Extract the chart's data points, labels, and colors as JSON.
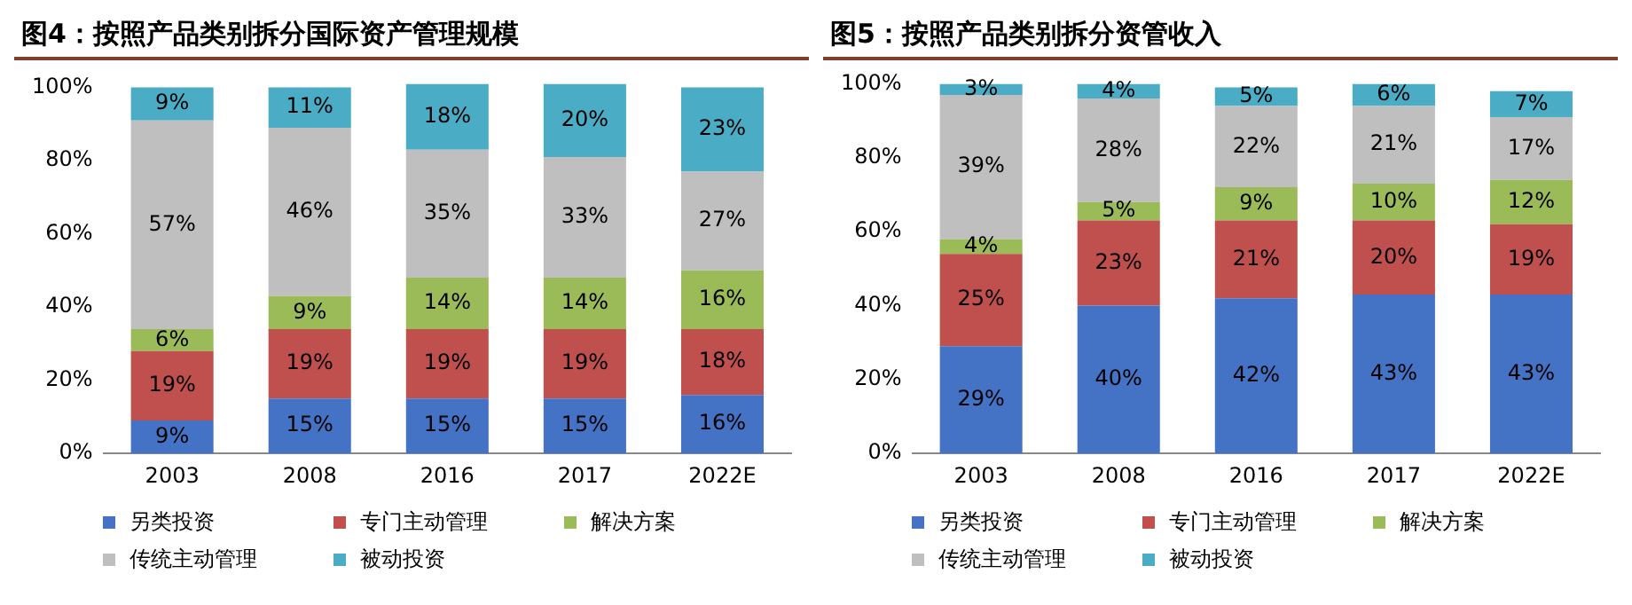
{
  "chart_data": [
    {
      "type": "bar",
      "title": "图4：按照产品类别拆分国际资产管理规模",
      "categories": [
        "2003",
        "2008",
        "2016",
        "2017",
        "2022E"
      ],
      "stacked": true,
      "legend": "bottom",
      "grid": false,
      "ylim": [
        0,
        101
      ],
      "yticks": [
        {
          "value": 0,
          "label": "0%"
        },
        {
          "value": 20,
          "label": "20%"
        },
        {
          "value": 40,
          "label": "40%"
        },
        {
          "value": 60,
          "label": "60%"
        },
        {
          "value": 80,
          "label": "80%"
        },
        {
          "value": 100,
          "label": "100%"
        }
      ],
      "series": [
        {
          "name": "另类投资",
          "color": "#4472c4",
          "values": [
            9,
            15,
            15,
            15,
            16
          ],
          "value_labels": [
            "9%",
            "15%",
            "15%",
            "15%",
            "16%"
          ]
        },
        {
          "name": "专门主动管理",
          "color": "#c0504d",
          "values": [
            19,
            19,
            19,
            19,
            18
          ],
          "value_labels": [
            "19%",
            "19%",
            "19%",
            "19%",
            "18%"
          ]
        },
        {
          "name": "解决方案",
          "color": "#9bbb59",
          "values": [
            6,
            9,
            14,
            14,
            16
          ],
          "value_labels": [
            "6%",
            "9%",
            "14%",
            "14%",
            "16%"
          ]
        },
        {
          "name": "传统主动管理",
          "color": "#bfbfbf",
          "values": [
            57,
            46,
            35,
            33,
            27
          ],
          "value_labels": [
            "57%",
            "46%",
            "35%",
            "33%",
            "27%"
          ]
        },
        {
          "name": "被动投资",
          "color": "#4bacc6",
          "values": [
            9,
            11,
            18,
            20,
            23
          ],
          "value_labels": [
            "9%",
            "11%",
            "18%",
            "20%",
            "23%"
          ]
        }
      ]
    },
    {
      "type": "bar",
      "title": "图5：按照产品类别拆分资管收入",
      "categories": [
        "2003",
        "2008",
        "2016",
        "2017",
        "2022E"
      ],
      "stacked": true,
      "legend": "bottom",
      "grid": false,
      "ylim": [
        0,
        100
      ],
      "yticks": [
        {
          "value": 0,
          "label": "0%"
        },
        {
          "value": 20,
          "label": "20%"
        },
        {
          "value": 40,
          "label": "40%"
        },
        {
          "value": 60,
          "label": "60%"
        },
        {
          "value": 80,
          "label": "80%"
        },
        {
          "value": 100,
          "label": "100%"
        }
      ],
      "series": [
        {
          "name": "另类投资",
          "color": "#4472c4",
          "values": [
            29,
            40,
            42,
            43,
            43
          ],
          "value_labels": [
            "29%",
            "40%",
            "42%",
            "43%",
            "43%"
          ]
        },
        {
          "name": "专门主动管理",
          "color": "#c0504d",
          "values": [
            25,
            23,
            21,
            20,
            19
          ],
          "value_labels": [
            "25%",
            "23%",
            "21%",
            "20%",
            "19%"
          ]
        },
        {
          "name": "解决方案",
          "color": "#9bbb59",
          "values": [
            4,
            5,
            9,
            10,
            12
          ],
          "value_labels": [
            "4%",
            "5%",
            "9%",
            "10%",
            "12%"
          ]
        },
        {
          "name": "传统主动管理",
          "color": "#bfbfbf",
          "values": [
            39,
            28,
            22,
            21,
            17
          ],
          "value_labels": [
            "39%",
            "28%",
            "22%",
            "21%",
            "17%"
          ]
        },
        {
          "name": "被动投资",
          "color": "#4bacc6",
          "values": [
            3,
            4,
            5,
            6,
            7
          ],
          "value_labels": [
            "3%",
            "4%",
            "5%",
            "6%",
            "7%"
          ]
        }
      ]
    }
  ]
}
